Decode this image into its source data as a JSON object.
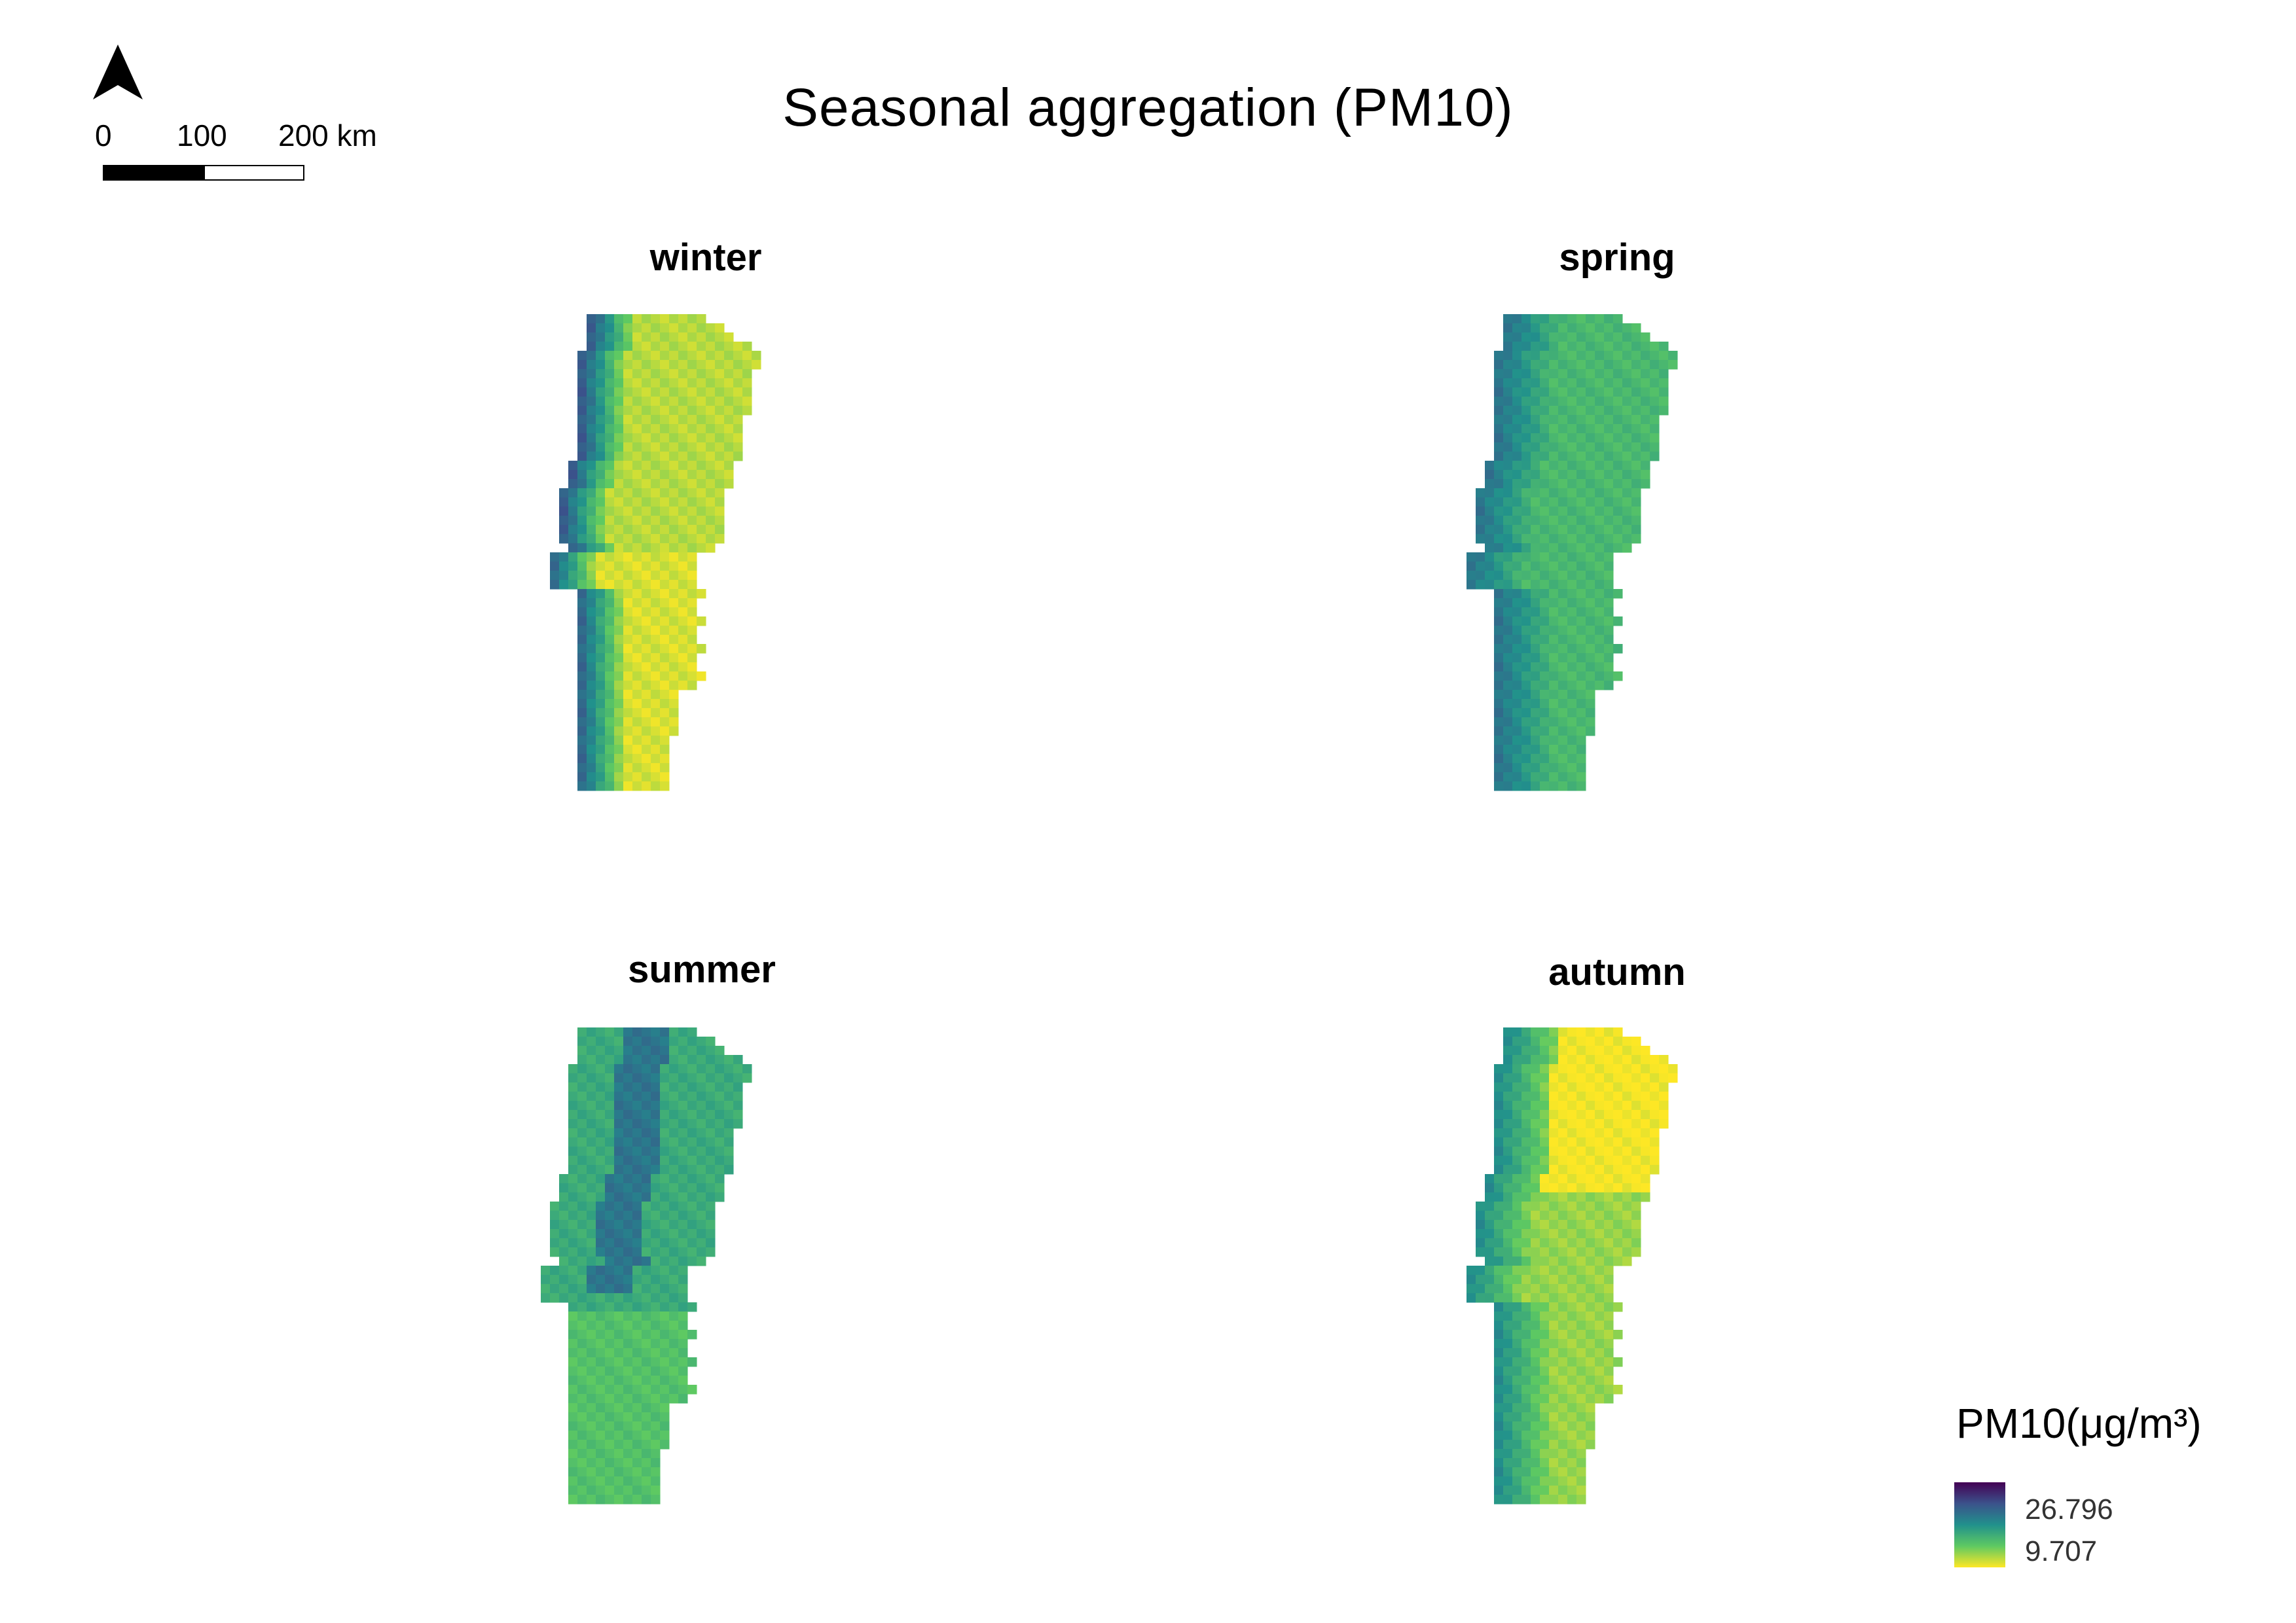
{
  "title": "Seasonal aggregation (PM10)",
  "scale": {
    "labels": [
      "0",
      "100",
      "200 km"
    ]
  },
  "north_icon": "north-arrow-icon",
  "panels": [
    {
      "label": "winter",
      "palette_note": "western coastal strip dark blue/purple, interior yellow-green"
    },
    {
      "label": "spring",
      "palette_note": "mostly teal-green, western coast blue"
    },
    {
      "label": "summer",
      "palette_note": "mostly teal-green, northern interior blue"
    },
    {
      "label": "autumn",
      "palette_note": "north-interior yellow, coast teal-blue"
    }
  ],
  "legend": {
    "title": "PM10(μg/m³)",
    "max": "26.796",
    "min": "9.707",
    "colors": [
      "#440154",
      "#3b528b",
      "#21918c",
      "#5ec962",
      "#fde725"
    ]
  }
}
